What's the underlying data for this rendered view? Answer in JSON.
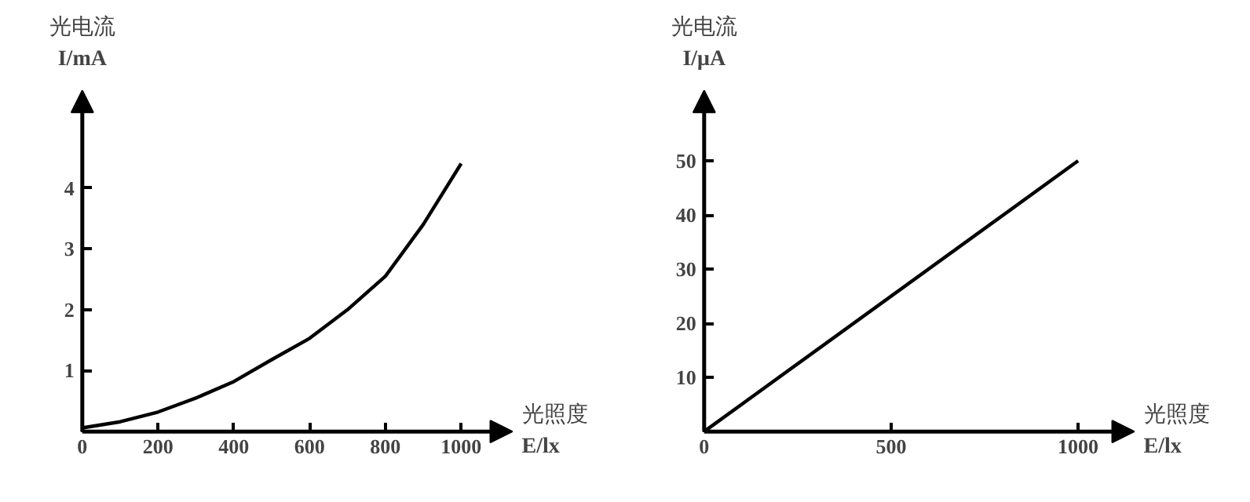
{
  "chart_data": [
    {
      "type": "line",
      "xlabel": "光照度\nE/lx",
      "ylabel": "光电流\nI/mA",
      "x": [
        0,
        100,
        200,
        300,
        400,
        500,
        600,
        700,
        800,
        900,
        1000
      ],
      "series": [
        {
          "color": "#000000",
          "values": [
            0.06,
            0.16,
            0.32,
            0.55,
            0.82,
            1.18,
            1.53,
            2.0,
            2.55,
            3.4,
            4.4
          ]
        }
      ],
      "xlim": [
        0,
        1135
      ],
      "ylim": [
        0,
        5.6
      ],
      "xticks": [
        0,
        200,
        400,
        600,
        800,
        1000
      ],
      "yticks": [
        1,
        2,
        3,
        4
      ],
      "grid": false,
      "marker": "none",
      "line_style": "solid"
    },
    {
      "type": "line",
      "xlabel": "光照度\nE/lx",
      "ylabel": "光电流\nI/μA",
      "x": [
        0,
        1000
      ],
      "series": [
        {
          "color": "#000000",
          "values": [
            0,
            50
          ]
        }
      ],
      "xlim": [
        0,
        1150
      ],
      "ylim": [
        0,
        63
      ],
      "xticks": [
        0,
        500,
        1000
      ],
      "yticks": [
        10,
        20,
        30,
        40,
        50
      ],
      "grid": false,
      "marker": "none",
      "line_style": "solid"
    }
  ]
}
